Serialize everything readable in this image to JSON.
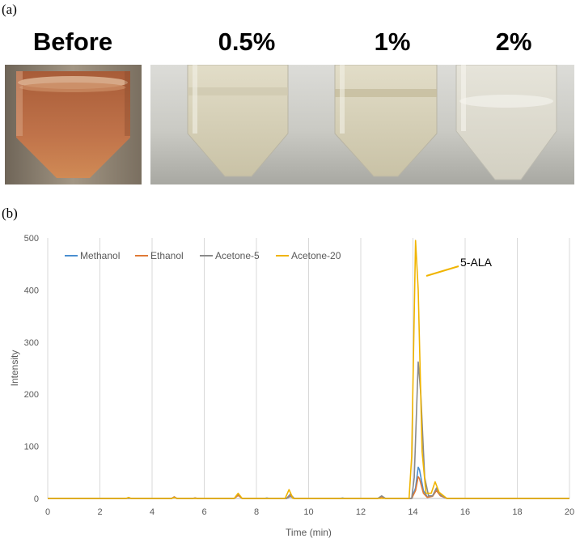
{
  "panel_a": {
    "tag": "(a)",
    "labels": [
      "Before",
      "0.5%",
      "1%",
      "2%"
    ],
    "colors": {
      "before_liquid": "#b4663c",
      "clear_liquid": "#d8d4c0",
      "backdrop": "#cfcfcb",
      "lab_bg": "#8a7f72"
    }
  },
  "panel_b": {
    "tag": "(b)",
    "annotation": "5-ALA"
  },
  "chart_data": {
    "type": "line",
    "title": "",
    "xlabel": "Time (min)",
    "ylabel": "Intensity",
    "xlim": [
      0,
      20
    ],
    "ylim": [
      0,
      500
    ],
    "xticks": [
      "0",
      "2",
      "4",
      "6",
      "8",
      "10",
      "12",
      "14",
      "16",
      "18",
      "20"
    ],
    "yticks": [
      "0",
      "100",
      "200",
      "300",
      "400",
      "500"
    ],
    "grid": "vertical",
    "legend_position": "top-left",
    "series": [
      {
        "name": "Methanol",
        "color": "#4a8fd0",
        "x": [
          0,
          3.0,
          3.1,
          3.2,
          4.75,
          4.85,
          4.95,
          5.55,
          5.65,
          5.75,
          7.15,
          7.3,
          7.45,
          8.3,
          8.4,
          8.5,
          9.15,
          9.3,
          9.45,
          11.2,
          11.3,
          11.4,
          12.65,
          12.8,
          12.95,
          13.95,
          14.1,
          14.2,
          14.25,
          14.4,
          14.55,
          14.75,
          14.9,
          15.05,
          15.3,
          20
        ],
        "y": [
          0,
          0,
          1,
          0,
          0,
          3,
          0,
          0,
          1,
          0,
          0,
          7,
          0,
          0,
          1,
          0,
          0,
          8,
          0,
          0,
          1,
          0,
          0,
          4,
          0,
          0,
          20,
          60,
          55,
          15,
          3,
          5,
          17,
          6,
          0,
          0
        ]
      },
      {
        "name": "Ethanol",
        "color": "#e07a36",
        "x": [
          0,
          3.0,
          3.1,
          3.2,
          4.75,
          4.85,
          4.95,
          5.55,
          5.65,
          5.75,
          7.15,
          7.3,
          7.45,
          9.15,
          9.3,
          9.45,
          12.65,
          12.8,
          12.95,
          13.95,
          14.1,
          14.2,
          14.25,
          14.4,
          14.55,
          14.75,
          14.9,
          15.05,
          15.3,
          20
        ],
        "y": [
          0,
          0,
          1,
          0,
          0,
          3,
          0,
          0,
          1,
          0,
          0,
          6,
          0,
          0,
          6,
          0,
          0,
          3,
          0,
          0,
          15,
          42,
          38,
          10,
          2,
          4,
          15,
          5,
          0,
          0
        ]
      },
      {
        "name": "Acetone-5",
        "color": "#8a8a8a",
        "x": [
          0,
          4.75,
          4.85,
          4.95,
          7.15,
          7.3,
          7.45,
          9.15,
          9.3,
          9.45,
          12.65,
          12.8,
          12.95,
          13.95,
          14.05,
          14.2,
          14.3,
          14.45,
          14.6,
          14.75,
          14.9,
          15.05,
          15.3,
          20
        ],
        "y": [
          0,
          0,
          2,
          0,
          0,
          9,
          0,
          0,
          4,
          0,
          0,
          5,
          0,
          0,
          40,
          262,
          200,
          40,
          5,
          5,
          20,
          7,
          0,
          0
        ]
      },
      {
        "name": "Acetone-20",
        "color": "#f0b400",
        "x": [
          0,
          3.0,
          3.1,
          3.2,
          4.75,
          4.85,
          4.95,
          7.15,
          7.3,
          7.45,
          9.1,
          9.25,
          9.4,
          13.85,
          13.95,
          14.1,
          14.2,
          14.35,
          14.5,
          14.7,
          14.85,
          15.0,
          15.3,
          20
        ],
        "y": [
          0,
          0,
          2,
          0,
          0,
          2,
          0,
          0,
          10,
          0,
          0,
          17,
          0,
          0,
          80,
          495,
          400,
          90,
          10,
          10,
          32,
          12,
          0,
          0
        ]
      }
    ]
  }
}
